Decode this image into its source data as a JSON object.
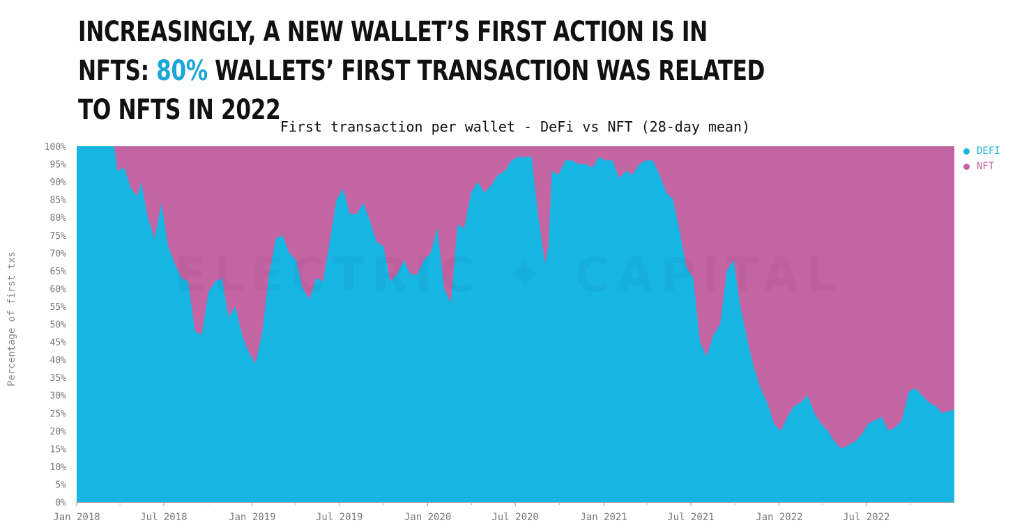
{
  "headline": {
    "part1": "INCREASINGLY, A NEW WALLET’S FIRST ACTION IS IN NFTS:",
    "accent": "80%",
    "part2": "WALLETS’ FIRST TRANSACTION WAS RELATED TO NFTS IN 2022"
  },
  "colors": {
    "defi": "#17b5e2",
    "nft": "#c464a3",
    "accent": "#1aa6d6"
  },
  "watermark": "ELECTRIC ✦ CAPITAL",
  "chart_data": {
    "type": "area",
    "title": "First transaction per wallet - DeFi vs NFT (28-day mean)",
    "ylabel": "Percentage of first txs",
    "xlabel": "",
    "stacked": true,
    "ylim": [
      0,
      100
    ],
    "y_ticks": [
      "0%",
      "5%",
      "10%",
      "15%",
      "20%",
      "25%",
      "30%",
      "35%",
      "40%",
      "45%",
      "50%",
      "55%",
      "60%",
      "65%",
      "70%",
      "75%",
      "80%",
      "85%",
      "90%",
      "95%",
      "100%"
    ],
    "x_ticks": [
      {
        "date": "2018-01-01",
        "label": "Jan 2018"
      },
      {
        "date": "2018-07-01",
        "label": "Jul 2018"
      },
      {
        "date": "2019-01-01",
        "label": "Jan 2019"
      },
      {
        "date": "2019-07-01",
        "label": "Jul 2019"
      },
      {
        "date": "2020-01-01",
        "label": "Jan 2020"
      },
      {
        "date": "2020-07-01",
        "label": "Jul 2020"
      },
      {
        "date": "2021-01-01",
        "label": "Jan 2021"
      },
      {
        "date": "2021-07-01",
        "label": "Jul 2021"
      },
      {
        "date": "2022-01-01",
        "label": "Jan 2022"
      },
      {
        "date": "2022-07-01",
        "label": "Jul 2022"
      }
    ],
    "xlim": [
      "2018-01-01",
      "2022-12-31"
    ],
    "legend_position": "top-right",
    "series": [
      {
        "name": "DEFI",
        "color": "#17b5e2",
        "points": [
          [
            "2018-01-01",
            100
          ],
          [
            "2018-03-20",
            100
          ],
          [
            "2018-03-27",
            93
          ],
          [
            "2018-04-10",
            94
          ],
          [
            "2018-04-24",
            88
          ],
          [
            "2018-05-08",
            86
          ],
          [
            "2018-05-15",
            90
          ],
          [
            "2018-05-29",
            80
          ],
          [
            "2018-06-12",
            74
          ],
          [
            "2018-06-26",
            84
          ],
          [
            "2018-07-10",
            72
          ],
          [
            "2018-07-24",
            67
          ],
          [
            "2018-08-07",
            63
          ],
          [
            "2018-08-21",
            62
          ],
          [
            "2018-09-04",
            48
          ],
          [
            "2018-09-18",
            47
          ],
          [
            "2018-10-02",
            59
          ],
          [
            "2018-10-16",
            62
          ],
          [
            "2018-10-30",
            63
          ],
          [
            "2018-11-13",
            52
          ],
          [
            "2018-11-27",
            55
          ],
          [
            "2018-12-11",
            47
          ],
          [
            "2018-12-25",
            42
          ],
          [
            "2019-01-08",
            39
          ],
          [
            "2019-01-22",
            48
          ],
          [
            "2019-02-05",
            64
          ],
          [
            "2019-02-19",
            74
          ],
          [
            "2019-03-05",
            75
          ],
          [
            "2019-03-19",
            70
          ],
          [
            "2019-04-02",
            68
          ],
          [
            "2019-04-16",
            60
          ],
          [
            "2019-04-30",
            57
          ],
          [
            "2019-05-14",
            63
          ],
          [
            "2019-05-28",
            62
          ],
          [
            "2019-06-11",
            73
          ],
          [
            "2019-06-25",
            85
          ],
          [
            "2019-07-09",
            88
          ],
          [
            "2019-07-23",
            81
          ],
          [
            "2019-08-06",
            81
          ],
          [
            "2019-08-20",
            84
          ],
          [
            "2019-09-03",
            79
          ],
          [
            "2019-09-17",
            73
          ],
          [
            "2019-10-01",
            72
          ],
          [
            "2019-10-15",
            62
          ],
          [
            "2019-10-29",
            64
          ],
          [
            "2019-11-12",
            68
          ],
          [
            "2019-11-26",
            64
          ],
          [
            "2019-12-10",
            64
          ],
          [
            "2019-12-24",
            68
          ],
          [
            "2020-01-07",
            70
          ],
          [
            "2020-01-21",
            77
          ],
          [
            "2020-02-04",
            60
          ],
          [
            "2020-02-18",
            56
          ],
          [
            "2020-03-03",
            78
          ],
          [
            "2020-03-17",
            77
          ],
          [
            "2020-03-31",
            87
          ],
          [
            "2020-04-14",
            90
          ],
          [
            "2020-04-28",
            87
          ],
          [
            "2020-05-12",
            89
          ],
          [
            "2020-05-26",
            92
          ],
          [
            "2020-06-09",
            93
          ],
          [
            "2020-06-23",
            96
          ],
          [
            "2020-07-07",
            97
          ],
          [
            "2020-07-21",
            97
          ],
          [
            "2020-08-04",
            97
          ],
          [
            "2020-08-18",
            80
          ],
          [
            "2020-09-01",
            67
          ],
          [
            "2020-09-08",
            72
          ],
          [
            "2020-09-15",
            93
          ],
          [
            "2020-09-29",
            92
          ],
          [
            "2020-10-13",
            96
          ],
          [
            "2020-10-27",
            96
          ],
          [
            "2020-11-10",
            95
          ],
          [
            "2020-11-24",
            95
          ],
          [
            "2020-12-08",
            94
          ],
          [
            "2020-12-22",
            97
          ],
          [
            "2021-01-05",
            96
          ],
          [
            "2021-01-19",
            96
          ],
          [
            "2021-02-02",
            91
          ],
          [
            "2021-02-16",
            93
          ],
          [
            "2021-03-02",
            92
          ],
          [
            "2021-03-16",
            95
          ],
          [
            "2021-03-30",
            96
          ],
          [
            "2021-04-13",
            96
          ],
          [
            "2021-04-27",
            92
          ],
          [
            "2021-05-11",
            87
          ],
          [
            "2021-05-25",
            85
          ],
          [
            "2021-06-08",
            76
          ],
          [
            "2021-06-22",
            66
          ],
          [
            "2021-07-06",
            63
          ],
          [
            "2021-07-20",
            45
          ],
          [
            "2021-08-03",
            41
          ],
          [
            "2021-08-17",
            47
          ],
          [
            "2021-08-31",
            50
          ],
          [
            "2021-09-14",
            65
          ],
          [
            "2021-09-28",
            68
          ],
          [
            "2021-10-12",
            55
          ],
          [
            "2021-10-26",
            46
          ],
          [
            "2021-11-09",
            38
          ],
          [
            "2021-11-23",
            32
          ],
          [
            "2021-12-07",
            28
          ],
          [
            "2021-12-21",
            22
          ],
          [
            "2022-01-04",
            20
          ],
          [
            "2022-01-18",
            24
          ],
          [
            "2022-02-01",
            27
          ],
          [
            "2022-02-15",
            28
          ],
          [
            "2022-03-01",
            30
          ],
          [
            "2022-03-15",
            25
          ],
          [
            "2022-03-29",
            22
          ],
          [
            "2022-04-12",
            20
          ],
          [
            "2022-04-26",
            17
          ],
          [
            "2022-05-10",
            15
          ],
          [
            "2022-05-24",
            16
          ],
          [
            "2022-06-07",
            17
          ],
          [
            "2022-06-21",
            19
          ],
          [
            "2022-07-05",
            22
          ],
          [
            "2022-07-19",
            23
          ],
          [
            "2022-08-02",
            24
          ],
          [
            "2022-08-16",
            20
          ],
          [
            "2022-08-30",
            21
          ],
          [
            "2022-09-13",
            23
          ],
          [
            "2022-09-27",
            31
          ],
          [
            "2022-10-11",
            32
          ],
          [
            "2022-10-25",
            30
          ],
          [
            "2022-11-08",
            28
          ],
          [
            "2022-11-22",
            27
          ],
          [
            "2022-12-06",
            25
          ],
          [
            "2022-12-31",
            26
          ]
        ]
      },
      {
        "name": "NFT",
        "color": "#c464a3",
        "fills_to": 100
      }
    ]
  }
}
